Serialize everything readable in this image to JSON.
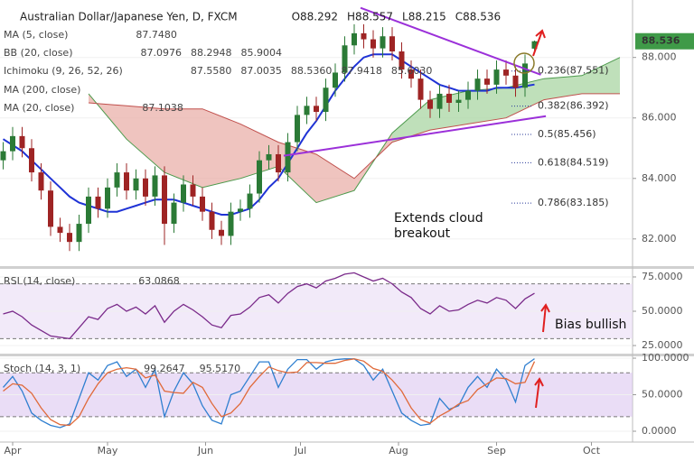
{
  "chart_data": [
    {
      "type": "candlestick",
      "title": "Australian Dollar/Japanese Yen, D, FXCM",
      "ohlc_labels": [
        "O88.292",
        "H88.557",
        "L88.215",
        "C88.536"
      ],
      "x": [
        -3,
        0,
        3,
        6,
        9,
        12,
        15,
        18,
        21,
        24,
        27,
        30,
        33,
        36,
        39,
        42,
        45,
        48,
        51,
        54,
        57,
        60,
        63,
        66,
        69,
        72,
        75,
        78,
        81,
        84,
        87,
        90,
        93,
        96,
        99,
        102,
        105,
        108,
        111,
        114,
        117,
        120,
        123,
        126,
        129,
        132,
        135,
        138,
        141,
        144,
        147,
        150,
        153,
        156,
        159,
        162,
        165
      ],
      "open": [
        84.6,
        84.9,
        85.4,
        85.0,
        84.2,
        83.6,
        82.4,
        82.2,
        81.9,
        82.5,
        83.4,
        83.0,
        83.7,
        84.2,
        83.6,
        84.0,
        83.4,
        84.1,
        82.5,
        83.2,
        83.8,
        83.4,
        82.9,
        82.3,
        82.1,
        82.9,
        83.0,
        83.5,
        84.6,
        84.8,
        84.2,
        85.2,
        86.1,
        86.4,
        86.2,
        87.0,
        87.5,
        88.4,
        88.8,
        88.6,
        88.3,
        88.7,
        88.2,
        87.6,
        87.3,
        86.6,
        86.3,
        86.8,
        86.5,
        86.6,
        86.9,
        87.3,
        87.1,
        87.6,
        87.4,
        87.0,
        88.292
      ],
      "high": [
        85.2,
        85.7,
        85.7,
        85.3,
        84.5,
        83.9,
        82.7,
        82.5,
        82.8,
        83.7,
        83.7,
        84.0,
        84.5,
        84.5,
        84.3,
        84.3,
        84.4,
        84.4,
        83.5,
        84.1,
        84.1,
        83.7,
        83.2,
        82.6,
        83.2,
        83.3,
        83.8,
        84.9,
        85.1,
        85.1,
        85.5,
        86.4,
        86.7,
        86.7,
        87.3,
        87.8,
        88.7,
        89.1,
        89.1,
        88.9,
        89.0,
        89.0,
        88.5,
        87.9,
        87.6,
        86.9,
        87.1,
        87.1,
        86.9,
        87.2,
        87.6,
        87.6,
        87.9,
        87.9,
        87.7,
        88.1,
        88.557
      ],
      "low": [
        84.3,
        84.6,
        84.7,
        83.9,
        83.3,
        82.1,
        81.9,
        81.6,
        81.6,
        82.2,
        82.7,
        82.7,
        83.4,
        83.3,
        83.3,
        83.1,
        83.1,
        81.8,
        82.2,
        82.9,
        83.1,
        82.6,
        82.0,
        81.8,
        81.8,
        82.6,
        82.7,
        83.2,
        84.3,
        83.9,
        83.9,
        84.9,
        85.8,
        85.9,
        85.9,
        86.7,
        87.2,
        88.1,
        88.3,
        88.0,
        88.0,
        87.9,
        87.3,
        87.0,
        86.3,
        86.0,
        86.0,
        86.2,
        86.2,
        86.3,
        86.6,
        86.8,
        86.8,
        87.1,
        86.7,
        86.7,
        88.215
      ],
      "close": [
        84.9,
        85.4,
        85.0,
        84.2,
        83.6,
        82.4,
        82.2,
        81.9,
        82.5,
        83.4,
        83.0,
        83.7,
        84.2,
        83.6,
        84.0,
        83.4,
        84.1,
        82.5,
        83.2,
        83.8,
        83.4,
        82.9,
        82.3,
        82.1,
        82.9,
        83.0,
        83.5,
        84.6,
        84.8,
        84.2,
        85.2,
        86.1,
        86.4,
        86.2,
        87.0,
        87.5,
        88.4,
        88.8,
        88.6,
        88.3,
        88.7,
        88.2,
        87.6,
        87.3,
        86.6,
        86.3,
        86.8,
        86.5,
        86.6,
        86.9,
        87.3,
        87.1,
        87.6,
        87.4,
        87.0,
        87.8,
        88.536
      ],
      "up_color": "#2b7a36",
      "down_color": "#9e2424",
      "indicators": [
        {
          "name": "MA (5, close)",
          "values": [
            87.748
          ],
          "value_labels": [
            "87.7480"
          ],
          "colors": [
            "#a01c1c"
          ]
        },
        {
          "name": "BB (20, close)",
          "values": [
            87.0976,
            88.2948,
            85.9004
          ],
          "value_labels": [
            "87.0976",
            "88.2948",
            "85.9004"
          ],
          "colors": [
            "#b8b8b8",
            "#b8b8b8",
            "#b8b8b8"
          ]
        },
        {
          "name": "Ichimoku (9, 26, 52, 26)",
          "values": [
            87.558,
            87.0035,
            88.536,
            87.9418,
            85.603
          ],
          "value_labels": [
            "87.5580",
            "87.0035",
            "88.5360",
            "87.9418",
            "85.6030"
          ],
          "colors": [
            "#2a4fc0",
            "#8b1a1a",
            "#2e7d32",
            "#2e7d32",
            "#c0392b"
          ]
        },
        {
          "name": "MA (200, close)"
        },
        {
          "name": "MA (20, close)",
          "values": [
            87.1038
          ],
          "value_labels": [
            "87.1038"
          ],
          "colors": [
            "#1f2fd0"
          ]
        }
      ],
      "lines": [
        {
          "color": "#1f33d6",
          "values": [
            85.3,
            85.1,
            84.9,
            84.6,
            84.3,
            84.0,
            83.7,
            83.4,
            83.2,
            83.1,
            83.0,
            82.9,
            82.9,
            83.0,
            83.1,
            83.2,
            83.3,
            83.3,
            83.3,
            83.2,
            83.1,
            83.0,
            82.9,
            82.8,
            82.8,
            82.9,
            83.0,
            83.3,
            83.7,
            84.0,
            84.5,
            85.0,
            85.5,
            85.9,
            86.4,
            86.9,
            87.3,
            87.7,
            88.0,
            88.1,
            88.1,
            88.1,
            87.9,
            87.7,
            87.5,
            87.3,
            87.1,
            87.0,
            86.9,
            86.9,
            86.9,
            86.9,
            87.0,
            87.0,
            87.0,
            87.05,
            87.1038
          ]
        }
      ],
      "cloud": {
        "x": [
          24,
          36,
          48,
          60,
          72,
          84,
          96,
          108,
          120,
          132,
          144,
          156,
          168,
          180,
          192
        ],
        "span_a": [
          86.8,
          85.3,
          84.2,
          83.7,
          84.0,
          84.4,
          83.2,
          83.6,
          85.5,
          86.6,
          86.9,
          87.0,
          87.3,
          87.4,
          88.0
        ],
        "span_b": [
          86.5,
          86.4,
          86.3,
          86.3,
          85.8,
          85.2,
          84.8,
          84.0,
          85.2,
          85.6,
          85.8,
          86.0,
          86.6,
          86.8,
          86.8
        ],
        "up_color": "#a9d6a3",
        "down_color": "#eab0aa",
        "a_color": "#4c9a4c",
        "b_color": "#c0504d"
      },
      "trendlines": [
        {
          "x": [
            110,
            167
          ],
          "y": [
            89.64,
            87.43
          ]
        },
        {
          "x": [
            85.7,
            168.6
          ],
          "y": [
            84.75,
            86.06
          ]
        }
      ],
      "trendline_color": "#9b30d9",
      "fib": {
        "values": [
          87.551,
          86.392,
          85.456,
          84.519,
          83.185
        ],
        "value_labels": [
          "0.236(87.551)",
          "0.382(86.392)",
          "0.5(85.456)",
          "0.618(84.519)",
          "0.786(83.185)"
        ],
        "color": "#2a3a9a"
      },
      "annotation": [
        "Extends cloud",
        "breakout"
      ],
      "price_tag": 88.536,
      "price_tag_color": "#3f9a48",
      "xlim": [
        -4,
        196
      ],
      "ylim": [
        81.1,
        89.9
      ],
      "yticks": [
        {
          "value": 82,
          "label": "82.000"
        },
        {
          "value": 84,
          "label": "84.000"
        },
        {
          "value": 86,
          "label": "86.000"
        },
        {
          "value": 88,
          "label": "88.000"
        }
      ]
    },
    {
      "type": "line",
      "title": "RSI (14, close)",
      "readouts": [
        63.0868
      ],
      "readout_labels": [
        "63.0868"
      ],
      "readout_colors": [
        "#7a2a8a"
      ],
      "x": [
        -3,
        0,
        3,
        6,
        9,
        12,
        15,
        18,
        21,
        24,
        27,
        30,
        33,
        36,
        39,
        42,
        45,
        48,
        51,
        54,
        57,
        60,
        63,
        66,
        69,
        72,
        75,
        78,
        81,
        84,
        87,
        90,
        93,
        96,
        99,
        102,
        105,
        108,
        111,
        114,
        117,
        120,
        123,
        126,
        129,
        132,
        135,
        138,
        141,
        144,
        147,
        150,
        153,
        156,
        159,
        162,
        165
      ],
      "series": [
        {
          "color": "#7a2a8a",
          "values": [
            48,
            50,
            46,
            40,
            36,
            32,
            31,
            30,
            38,
            46,
            44,
            52,
            55,
            50,
            53,
            48,
            54,
            42,
            50,
            55,
            51,
            46,
            40,
            38,
            47,
            48,
            53,
            60,
            62,
            56,
            63,
            68,
            70,
            67,
            72,
            74,
            77,
            78,
            75,
            72,
            74,
            70,
            64,
            60,
            52,
            48,
            54,
            50,
            51,
            55,
            58,
            56,
            60,
            58,
            52,
            59,
            63.0868
          ]
        }
      ],
      "bands": [
        30,
        70
      ],
      "band_color": "#eadcf5",
      "annotation": "Bias bullish",
      "xlim": [
        -4,
        196
      ],
      "ylim": [
        19.1,
        80.9
      ],
      "yticks": [
        {
          "value": 75,
          "label": "75.0000"
        },
        {
          "value": 50,
          "label": "50.0000"
        },
        {
          "value": 25,
          "label": "25.0000"
        }
      ]
    },
    {
      "type": "line",
      "title": "Stoch (14, 3, 1)",
      "readouts": [
        99.2647,
        95.517
      ],
      "readout_labels": [
        "99.2647",
        "95.5170"
      ],
      "readout_colors": [
        "#2f7fd0",
        "#d9602c"
      ],
      "x": [
        -3,
        0,
        3,
        6,
        9,
        12,
        15,
        18,
        21,
        24,
        27,
        30,
        33,
        36,
        39,
        42,
        45,
        48,
        51,
        54,
        57,
        60,
        63,
        66,
        69,
        72,
        75,
        78,
        81,
        84,
        87,
        90,
        93,
        96,
        99,
        102,
        105,
        108,
        111,
        114,
        117,
        120,
        123,
        126,
        129,
        132,
        135,
        138,
        141,
        144,
        147,
        150,
        153,
        156,
        159,
        162,
        165
      ],
      "series": [
        {
          "color": "#2f7fd0",
          "values": [
            60,
            75,
            55,
            25,
            15,
            8,
            5,
            10,
            45,
            80,
            70,
            90,
            95,
            75,
            85,
            60,
            85,
            20,
            55,
            80,
            65,
            35,
            15,
            10,
            50,
            55,
            75,
            95,
            95,
            60,
            85,
            98,
            98,
            85,
            95,
            98,
            99,
            99,
            90,
            70,
            85,
            55,
            25,
            15,
            8,
            10,
            45,
            30,
            35,
            60,
            75,
            60,
            85,
            70,
            40,
            90,
            99.2647
          ]
        },
        {
          "color": "#e06a3a",
          "values": [
            55,
            65,
            63,
            52,
            32,
            16,
            9,
            8,
            20,
            45,
            65,
            80,
            85,
            87,
            85,
            73,
            77,
            55,
            53,
            52,
            67,
            60,
            38,
            20,
            25,
            38,
            60,
            75,
            88,
            83,
            80,
            81,
            94,
            94,
            93,
            93,
            97,
            99,
            96,
            86,
            82,
            70,
            55,
            32,
            16,
            11,
            21,
            28,
            37,
            42,
            57,
            65,
            73,
            72,
            65,
            67,
            95.517
          ]
        }
      ],
      "bands": [
        20,
        80
      ],
      "band_color": "#dcc6f0",
      "xlim": [
        -4,
        196
      ],
      "ylim": [
        -14.8,
        102.5
      ],
      "yticks": [
        {
          "value": 100,
          "label": "100.0000"
        },
        {
          "value": 50,
          "label": "50.0000"
        },
        {
          "value": 0,
          "label": "0.0000"
        }
      ],
      "xticks": [
        {
          "value": 0,
          "label": "Apr"
        },
        {
          "value": 30,
          "label": "May"
        },
        {
          "value": 61,
          "label": "Jun"
        },
        {
          "value": 91,
          "label": "Jul"
        },
        {
          "value": 122,
          "label": "Aug"
        },
        {
          "value": 153,
          "label": "Sep"
        },
        {
          "value": 183,
          "label": "Oct"
        }
      ]
    }
  ]
}
